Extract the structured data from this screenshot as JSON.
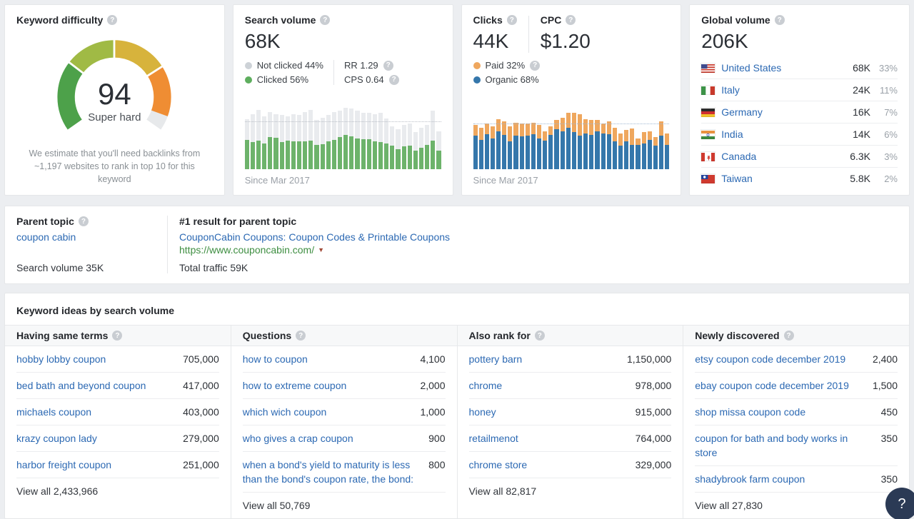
{
  "icons": {
    "help": "?",
    "caret_down": "▼"
  },
  "colors": {
    "link_blue": "#2c69b3",
    "url_green": "#3e8e41",
    "page_bg": "#eceef1",
    "bar_clicked_green": "#6db36b",
    "bar_not_clicked_gray": "#e9ebee",
    "bar_organic_blue": "#3577ab",
    "bar_paid_orange": "#efa75e",
    "fab_navy": "#2b3a55"
  },
  "difficulty": {
    "title": "Keyword difficulty",
    "score": "94",
    "score_label": "Super hard",
    "note_line1": "We estimate that you'll need backlinks from",
    "note_line2": "~1,197 websites to rank in top 10 for this keyword"
  },
  "search_volume": {
    "title": "Search volume",
    "value": "68K",
    "legend": [
      {
        "label": "Not clicked 44%",
        "color": "#cdd2d7"
      },
      {
        "label": "Clicked 56%",
        "color": "#5eae5e"
      }
    ],
    "stats": [
      {
        "label": "RR 1.29"
      },
      {
        "label": "CPS 0.64"
      }
    ],
    "since": "Since Mar 2017"
  },
  "clicks": {
    "clicks_title": "Clicks",
    "clicks_value": "44K",
    "cpc_title": "CPC",
    "cpc_value": "$1.20",
    "legend": [
      {
        "label": "Paid 32%",
        "color": "#efa75e",
        "help": true
      },
      {
        "label": "Organic 68%",
        "color": "#3577ab",
        "help": false
      }
    ],
    "since": "Since Mar 2017"
  },
  "global_volume": {
    "title": "Global volume",
    "value": "206K",
    "countries": [
      {
        "flag": "us",
        "name": "United States",
        "value": "68K",
        "pct": "33%"
      },
      {
        "flag": "it",
        "name": "Italy",
        "value": "24K",
        "pct": "11%"
      },
      {
        "flag": "de",
        "name": "Germany",
        "value": "16K",
        "pct": "7%"
      },
      {
        "flag": "in",
        "name": "India",
        "value": "14K",
        "pct": "6%"
      },
      {
        "flag": "ca",
        "name": "Canada",
        "value": "6.3K",
        "pct": "3%"
      },
      {
        "flag": "tw",
        "name": "Taiwan",
        "value": "5.8K",
        "pct": "2%"
      }
    ]
  },
  "parent_topic": {
    "label": "Parent topic",
    "keyword": "coupon cabin",
    "volume_line": "Search volume 35K",
    "result_header": "#1 result for parent topic",
    "result_title": "CouponCabin Coupons: Coupon Codes & Printable Coupons",
    "result_url": "https://www.couponcabin.com/",
    "total_line": "Total traffic 59K"
  },
  "ideas": {
    "title": "Keyword ideas by search volume",
    "columns": [
      {
        "header": "Having same terms",
        "rows": [
          {
            "label": "hobby lobby coupon",
            "value": "705,000"
          },
          {
            "label": "bed bath and beyond coupon",
            "value": "417,000"
          },
          {
            "label": "michaels coupon",
            "value": "403,000"
          },
          {
            "label": "krazy coupon lady",
            "value": "279,000"
          },
          {
            "label": "harbor freight coupon",
            "value": "251,000"
          }
        ],
        "view_all": "View all 2,433,966"
      },
      {
        "header": "Questions",
        "rows": [
          {
            "label": "how to coupon",
            "value": "4,100"
          },
          {
            "label": "how to extreme coupon",
            "value": "2,000"
          },
          {
            "label": "which wich coupon",
            "value": "1,000"
          },
          {
            "label": "who gives a crap coupon",
            "value": "900"
          },
          {
            "label": "when a bond's yield to maturity is less than the bond's coupon rate, the bond:",
            "value": "800"
          }
        ],
        "view_all": "View all 50,769"
      },
      {
        "header": "Also rank for",
        "rows": [
          {
            "label": "pottery barn",
            "value": "1,150,000"
          },
          {
            "label": "chrome",
            "value": "978,000"
          },
          {
            "label": "honey",
            "value": "915,000"
          },
          {
            "label": "retailmenot",
            "value": "764,000"
          },
          {
            "label": "chrome store",
            "value": "329,000"
          }
        ],
        "view_all": "View all 82,817"
      },
      {
        "header": "Newly discovered",
        "rows": [
          {
            "label": "etsy coupon code december 2019",
            "value": "2,400"
          },
          {
            "label": "ebay coupon code december 2019",
            "value": "1,500"
          },
          {
            "label": "shop missa coupon code",
            "value": "450"
          },
          {
            "label": "coupon for bath and body works in store",
            "value": "350"
          },
          {
            "label": "shadybrook farm coupon",
            "value": "350"
          }
        ],
        "view_all": "View all 27,830"
      }
    ]
  },
  "fab": {
    "label": "?"
  },
  "chart_data": [
    {
      "type": "gauge",
      "title": "Keyword difficulty",
      "value": 94,
      "max": 100,
      "label": "Super hard",
      "segment_boundaries_pct": [
        0,
        29,
        50,
        73,
        94,
        100
      ],
      "segment_colors": [
        "#4da14a",
        "#a0ba45",
        "#d7b33c",
        "#ef8d33",
        "#e7e9eb"
      ],
      "sweep_deg": 250
    },
    {
      "type": "bar",
      "stacked": true,
      "title": "Search volume monthly trend",
      "x_label": "Since Mar 2017",
      "units": "percent of chart height (axis unlabeled)",
      "avg_line_pct": 78,
      "avg_line_color": "#b9bec5",
      "series": [
        {
          "name": "Clicked",
          "color": "#6db36b",
          "values": [
            48,
            44,
            47,
            42,
            52,
            51,
            44,
            46,
            45,
            45,
            45,
            46,
            40,
            41,
            45,
            48,
            52,
            56,
            53,
            50,
            49,
            49,
            45,
            44,
            42,
            38,
            33,
            37,
            38,
            30,
            35,
            40,
            46,
            30
          ]
        },
        {
          "name": "Not clicked",
          "color": "#e9ebee",
          "values": [
            34,
            46,
            50,
            44,
            41,
            39,
            44,
            40,
            45,
            43,
            48,
            50,
            40,
            43,
            43,
            45,
            43,
            44,
            46,
            45,
            43,
            43,
            45,
            48,
            41,
            32,
            32,
            35,
            37,
            30,
            33,
            32,
            49,
            32
          ]
        }
      ]
    },
    {
      "type": "bar",
      "stacked": true,
      "title": "Clicks monthly trend",
      "x_label": "Since Mar 2017",
      "units": "percent of chart height (axis unlabeled)",
      "avg_line_pct": 74,
      "avg_line_color": "#9fb8d2",
      "series": [
        {
          "name": "Organic",
          "color": "#3577ab",
          "values": [
            55,
            48,
            57,
            50,
            62,
            56,
            45,
            55,
            54,
            55,
            57,
            50,
            47,
            56,
            65,
            62,
            68,
            60,
            55,
            58,
            56,
            62,
            58,
            57,
            45,
            38,
            45,
            40,
            40,
            42,
            48,
            38,
            55,
            40
          ]
        },
        {
          "name": "Paid",
          "color": "#efa75e",
          "values": [
            17,
            20,
            18,
            20,
            20,
            22,
            25,
            21,
            20,
            19,
            19,
            22,
            15,
            14,
            15,
            22,
            24,
            32,
            35,
            24,
            24,
            18,
            16,
            21,
            23,
            20,
            19,
            26,
            10,
            18,
            14,
            14,
            23,
            18
          ]
        }
      ]
    }
  ]
}
